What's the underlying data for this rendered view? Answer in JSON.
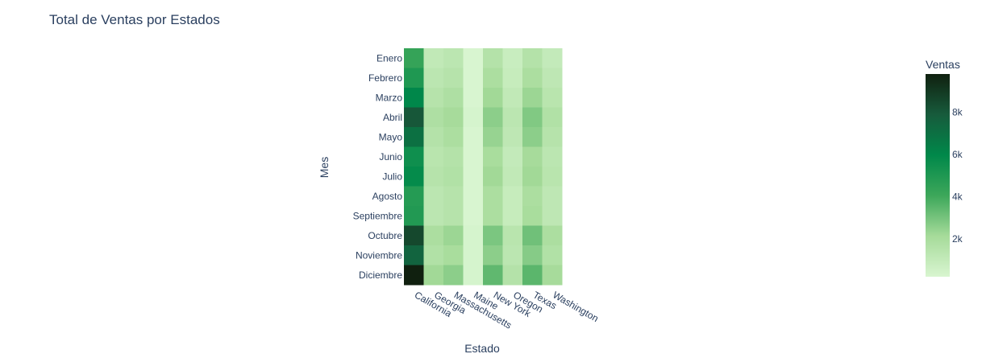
{
  "chart_data": {
    "type": "heatmap",
    "title": "Total de Ventas por Estados",
    "xlabel": "Estado",
    "ylabel": "Mes",
    "x": [
      "California",
      "Georgia",
      "Massachusetts",
      "Maine",
      "New York",
      "Oregon",
      "Texas",
      "Washington"
    ],
    "y": [
      "Enero",
      "Febrero",
      "Marzo",
      "Abril",
      "Mayo",
      "Junio",
      "Julio",
      "Agosto",
      "Septiembre",
      "Octubre",
      "Noviembre",
      "Diciembre"
    ],
    "z": [
      [
        4300,
        1100,
        1300,
        200,
        1600,
        800,
        1600,
        1000
      ],
      [
        5000,
        1300,
        1500,
        200,
        1900,
        900,
        1900,
        1200
      ],
      [
        6000,
        1500,
        1800,
        200,
        2200,
        1100,
        2300,
        1400
      ],
      [
        8000,
        1800,
        2100,
        300,
        2600,
        1300,
        2800,
        1700
      ],
      [
        7000,
        1600,
        1900,
        200,
        2400,
        1200,
        2600,
        1500
      ],
      [
        5500,
        1400,
        1600,
        200,
        2000,
        1000,
        2100,
        1300
      ],
      [
        5800,
        1500,
        1700,
        200,
        2200,
        1100,
        2200,
        1400
      ],
      [
        4800,
        1300,
        1500,
        200,
        1900,
        900,
        1900,
        1200
      ],
      [
        4900,
        1300,
        1500,
        200,
        1900,
        900,
        2000,
        1200
      ],
      [
        8500,
        1900,
        2300,
        300,
        2900,
        1400,
        3100,
        1900
      ],
      [
        7500,
        1700,
        2000,
        300,
        2600,
        1300,
        2700,
        1700
      ],
      [
        9800,
        2200,
        2600,
        300,
        3400,
        1600,
        3500,
        2100
      ]
    ],
    "colorbar": {
      "title": "Ventas",
      "ticks": [
        2000,
        4000,
        6000,
        8000
      ],
      "tick_labels": [
        "2k",
        "4k",
        "6k",
        "8k"
      ],
      "range": [
        200,
        9800
      ],
      "colorscale": [
        "#d8f5d0",
        "#a6db9a",
        "#3da75a",
        "#00884a",
        "#175b3c",
        "#10200f"
      ]
    }
  }
}
